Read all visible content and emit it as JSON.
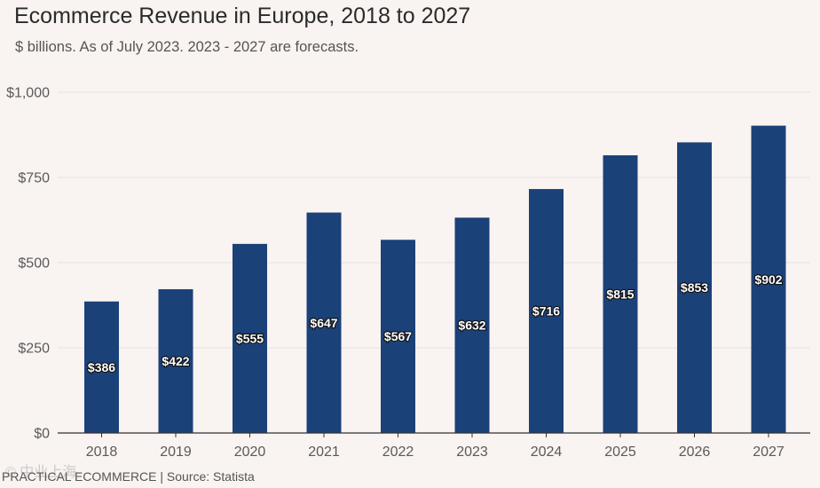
{
  "chart_data": {
    "type": "bar",
    "title": "Ecommerce Revenue in Europe, 2018 to 2027",
    "subtitle": "$ billions. As of July 2023. 2023 - 2027 are forecasts.",
    "categories": [
      "2018",
      "2019",
      "2020",
      "2021",
      "2022",
      "2023",
      "2024",
      "2025",
      "2026",
      "2027"
    ],
    "values": [
      386,
      422,
      555,
      647,
      567,
      632,
      716,
      815,
      853,
      902
    ],
    "value_labels": [
      "$386",
      "$422",
      "$555",
      "$647",
      "$567",
      "$632",
      "$716",
      "$815",
      "$853",
      "$902"
    ],
    "yticks": [
      0,
      250,
      500,
      750,
      1000
    ],
    "ytick_labels": [
      "$0",
      "$250",
      "$500",
      "$750",
      "$1,000"
    ],
    "ylim": [
      0,
      1000
    ],
    "xlabel": "",
    "ylabel": "",
    "grid": true,
    "bar_color": "#1b4179"
  },
  "footer": "PRACTICAL ECOMMERCE | Source: Statista",
  "watermark": "© 中业上海"
}
